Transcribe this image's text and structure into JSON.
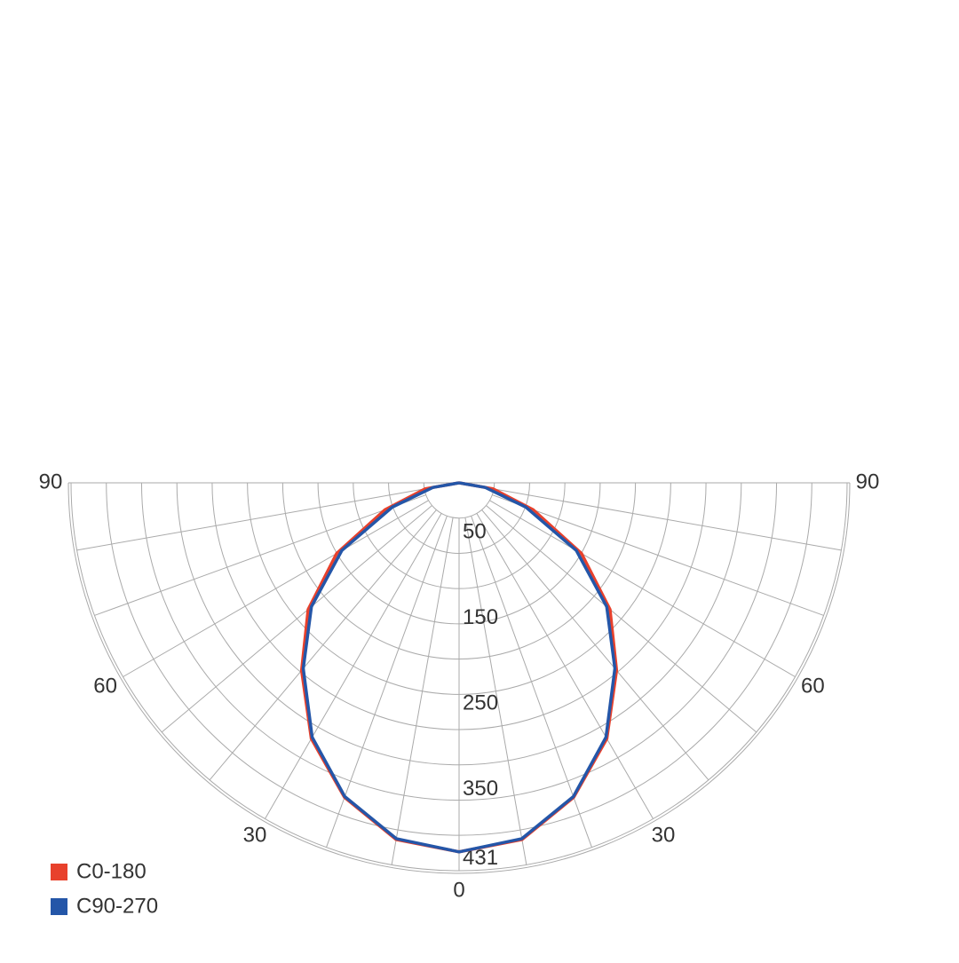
{
  "chart_data": {
    "type": "polar",
    "x": [
      -90,
      -80,
      -70,
      -60,
      -50,
      -40,
      -30,
      -20,
      -10,
      0,
      10,
      20,
      30,
      40,
      50,
      60,
      70,
      80,
      90
    ],
    "series": [
      {
        "name": "C0-180",
        "color": "#e8412c",
        "values": [
          0,
          40,
          92,
          165,
          230,
          286,
          345,
          391,
          423,
          431,
          423,
          391,
          345,
          286,
          230,
          165,
          92,
          40,
          0
        ]
      },
      {
        "name": "C90-270",
        "color": "#2456a8",
        "values": [
          0,
          31,
          83,
          158,
          225,
          283,
          343,
          390,
          422,
          431,
          422,
          390,
          343,
          283,
          225,
          158,
          83,
          31,
          0
        ]
      }
    ],
    "rlim": [
      0,
      453
    ],
    "rticks": [
      50,
      150,
      250,
      350,
      431
    ],
    "xticks": [
      {
        "value": -90,
        "label": "90"
      },
      {
        "value": -60,
        "label": "60"
      },
      {
        "value": -30,
        "label": "30"
      },
      0,
      30,
      60,
      90
    ],
    "legend": "bottom-left"
  }
}
